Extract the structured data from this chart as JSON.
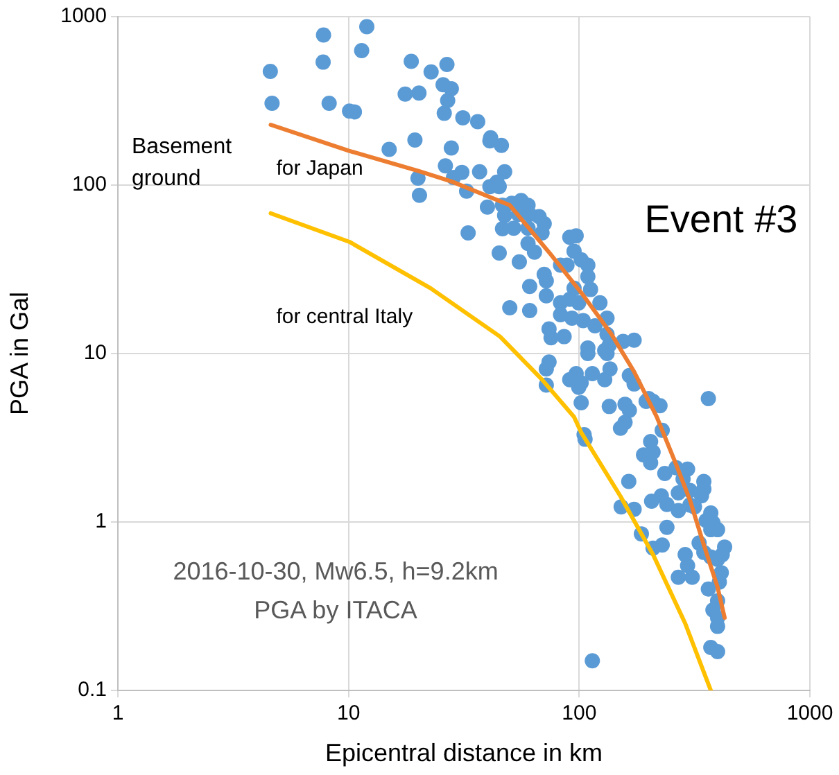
{
  "chart_data": {
    "type": "scatter",
    "xlabel": "Epicentral distance in km",
    "ylabel": "PGA in Gal",
    "log": "xy",
    "xlim": [
      1,
      1000
    ],
    "ylim": [
      0.1,
      1000
    ],
    "xticks": [
      1,
      10,
      100,
      1000
    ],
    "yticks": [
      0.1,
      1,
      10,
      100,
      1000
    ],
    "grid": true,
    "legend": false,
    "marker": "circle",
    "annotations": [
      "Event #3",
      "Basement ground",
      "2016-10-30, Mw6.5, h=9.2km",
      "PGA by ITACA"
    ],
    "series": [
      {
        "color": "#5b9bd5",
        "x": [
          4.58,
          4.66,
          7.79,
          7.76,
          8.24,
          10.1,
          10.6,
          11.4,
          12.0,
          18.7,
          22.8,
          26.7,
          17.6,
          20.2,
          25.7,
          27.9,
          26.9,
          26.0,
          31.3,
          36.3,
          15.0,
          19.4,
          27.9,
          26.3,
          20.0,
          20.3,
          33.0,
          41.3,
          41,
          46,
          31,
          28.5,
          32.5,
          37,
          41,
          44,
          47.5,
          45,
          40,
          46.5,
          51,
          56,
          60,
          54.5,
          61,
          47.5,
          67,
          46.5,
          52,
          60,
          69,
          70.5,
          91,
          97,
          45,
          55,
          60,
          64,
          95,
          83,
          88.5,
          102,
          109,
          61,
          70.5,
          72,
          109,
          95,
          72,
          50,
          61,
          83,
          91,
          99.5,
          112,
          123,
          83,
          93,
          104,
          117,
          132,
          74,
          75.5,
          86,
          132,
          155,
          173,
          109,
          109,
          129,
          135,
          132,
          72,
          97,
          114,
          91,
          102,
          129,
          165,
          173,
          72,
          99.5,
          102,
          135,
          158,
          165,
          200,
          195,
          224,
          363,
          136,
          74,
          158,
          151,
          209,
          229,
          105,
          106,
          204,
          190,
          209,
          204,
          235,
          263,
          295,
          282,
          347,
          164,
          269,
          302,
          347,
          339,
          206,
          227,
          152,
          173,
          240,
          269,
          302,
          316,
          372,
          355,
          380,
          398,
          372,
          240,
          186,
          209,
          229,
          331,
          347,
          372,
          427,
          417,
          398,
          288,
          295,
          269,
          309,
          413,
          405,
          363,
          398,
          380,
          398,
          398,
          372,
          398,
          114
        ],
        "values": [
          473,
          306,
          778,
          537,
          306,
          275,
          272,
          628,
          871,
          543,
          470,
          520,
          347,
          352,
          394,
          373,
          318,
          267,
          251,
          238,
          163,
          185,
          166,
          130,
          110,
          87,
          52,
          191,
          183,
          172,
          119,
          111,
          92,
          120,
          98,
          104,
          120,
          98,
          74,
          76,
          78,
          81,
          76,
          67,
          67,
          66,
          65,
          55,
          55.5,
          55.5,
          52,
          59,
          49,
          50,
          39.5,
          35,
          45,
          40,
          40.5,
          33.5,
          33.5,
          36,
          33.5,
          25,
          29.5,
          27,
          28.6,
          24.4,
          22,
          18.7,
          18,
          20,
          21,
          20,
          24,
          20,
          17,
          16.2,
          15.7,
          14.6,
          16.2,
          14,
          12.4,
          12.6,
          13,
          11.8,
          12,
          10.8,
          10,
          10.4,
          11.2,
          10,
          8.1,
          7.6,
          7.6,
          7,
          6.7,
          7,
          7.4,
          6.6,
          6.5,
          6.3,
          5.1,
          4.85,
          5,
          4.6,
          5.4,
          5.2,
          4.9,
          5.4,
          8.1,
          8.9,
          3.9,
          3.6,
          5.2,
          3.5,
          3.3,
          3.1,
          3.0,
          2.5,
          2.6,
          2.25,
          1.94,
          2.1,
          2.06,
          1.8,
          1.74,
          1.74,
          1.49,
          1.54,
          1.57,
          1.43,
          1.33,
          1.43,
          1.23,
          1.19,
          1.27,
          1.17,
          1.26,
          1.23,
          1.13,
          1.02,
          0.99,
          0.9,
          0.9,
          0.93,
          0.85,
          0.7,
          0.73,
          0.75,
          0.66,
          0.62,
          0.71,
          0.64,
          0.6,
          0.64,
          0.55,
          0.47,
          0.47,
          0.5,
          0.44,
          0.4,
          0.34,
          0.3,
          0.27,
          0.24,
          0.18,
          0.17,
          0.15
        ]
      },
      {
        "type": "line",
        "name": "for Japan",
        "color": "#ed7d31",
        "marker": "none",
        "x": [
          4.6,
          10,
          20.2,
          28,
          50,
          75,
          102,
          138,
          173,
          217,
          263,
          302,
          347,
          398,
          427
        ],
        "values": [
          228,
          160,
          121,
          105,
          76,
          39,
          23,
          13,
          7.8,
          4.2,
          2.2,
          1.35,
          0.73,
          0.41,
          0.27
        ]
      },
      {
        "type": "line",
        "name": "for central Italy",
        "color": "#ffc000",
        "marker": "none",
        "x": [
          4.6,
          10.1,
          22.7,
          45.4,
          69,
          95,
          102,
          151,
          209,
          288,
          372
        ],
        "values": [
          68,
          46,
          24.4,
          12.6,
          7.0,
          4.2,
          3.4,
          1.42,
          0.64,
          0.25,
          0.1
        ]
      }
    ]
  }
}
